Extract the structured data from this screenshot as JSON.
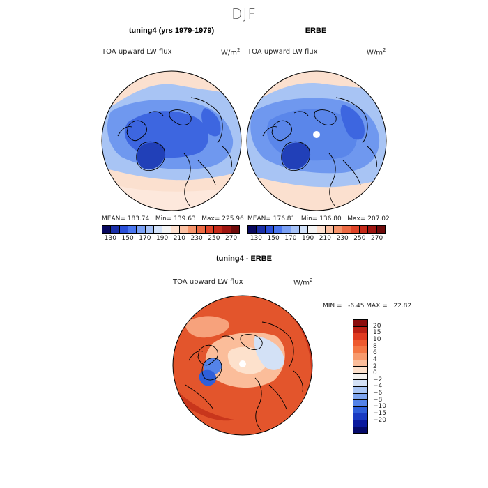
{
  "season": "DJF",
  "panels": [
    {
      "title": "tuning4 (yrs 1979-1979)",
      "variable": "TOA upward LW flux",
      "units": "W/m",
      "units_sup": "2",
      "stats": "MEAN= 183.74   Min= 139.63   Max= 225.96"
    },
    {
      "title": "ERBE",
      "variable": "TOA upward LW flux",
      "units": "W/m",
      "units_sup": "2",
      "stats": "MEAN= 176.81   Min= 136.80   Max= 207.02"
    }
  ],
  "shared_colorbar": {
    "labels": [
      "130",
      "150",
      "170",
      "190",
      "210",
      "230",
      "250",
      "270"
    ],
    "colors": [
      "#08085e",
      "#1a2fa8",
      "#2a4fd8",
      "#4a76ef",
      "#7aa0f4",
      "#a6c2f7",
      "#d2e2fa",
      "#f4f4f4",
      "#fde0cf",
      "#fbc1a3",
      "#f5946b",
      "#ec6a43",
      "#df4428",
      "#c52a19",
      "#9e1510",
      "#6e0a0a"
    ]
  },
  "difference": {
    "title": "tuning4 - ERBE",
    "variable": "TOA upward LW flux",
    "units": "W/m",
    "units_sup": "2",
    "stats": "MIN =   -6.45 MAX =   22.82",
    "colorbar_labels": [
      "20",
      "15",
      "10",
      "8",
      "6",
      "4",
      "2",
      "0",
      "−2",
      "−4",
      "−6",
      "−8",
      "−10",
      "−15",
      "−20"
    ],
    "colorbar_colors": [
      "#8b0c0c",
      "#bb1f14",
      "#e03a20",
      "#ee5a2e",
      "#f47744",
      "#f79a6c",
      "#fbbd9a",
      "#fde1cc",
      "#f4f2f0",
      "#d3e1f6",
      "#a9c5f4",
      "#7ea5ef",
      "#5483e8",
      "#2f5fd9",
      "#1a3bc2",
      "#0b1a9e",
      "#050a6a"
    ]
  },
  "map_colors": {
    "ocean_pacific": "#fbe0cf",
    "blue_light": "#a8c4f4",
    "blue_mid": "#6f98ef",
    "blue_dark": "#3d66e0",
    "blue_deep": "#2140b8",
    "diff_red": "#e3552c",
    "diff_red_light": "#f7a27c",
    "diff_red_dark": "#c8361c"
  }
}
